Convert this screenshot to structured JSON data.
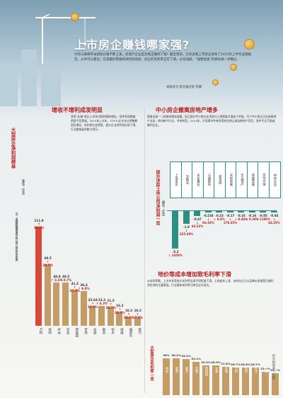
{
  "header": {
    "title": "上市房企赚钱哪家强?",
    "lead": "今年以来每平米新房价格不断上涨，房地产企业是否真正赚到了钱？截至目前，已有多家上市房企发布了2015年上半年业绩报告。从中可以看出，在高额的营收和净利润背后，房企的毛利率正在下滑，分化加剧，“强者恒强”的格局进一步确立。",
    "byline": "本版采写 新京报记者 李娜"
  },
  "left": {
    "title": "增收不增利成发明显",
    "text": "多家“长袖”房企上半年均保持营收增长，但净利润增速明显不及营收。2015年上半年，TOP10企业合计销售额同比增长，但利润分化明显，部分企业净利润出现下滑，行业整体盈利能力承压。",
    "chart_vtitle": "大型房企净利润榜单",
    "chart_unit": "（单位：亿元）",
    "chart_note": "注：本榜数据来源为各公司公布的半年报"
  },
  "right_top": {
    "title": "中小房企撤离房地产增多",
    "text": "营收全面一二线城市增长放缓，加之部分中小房企在资金与土地获取方面处于劣势，不少中小房企正在剥离地产业务，转向新兴行业，寻求转型。2014年，沪深两市共有多家房企转让或出售地产项目，其中不乏亏损或微利企业。",
    "chart_vtitle": "部分涉房上市公司净利润一览",
    "chart_unit": "（单位：亿元）"
  },
  "right_bottom": {
    "title": "地价等成本增加致毛利率下滑",
    "text": "从毛利率看，上半年多家房企毛利率出现不同程度下滑。土地成本上涨、去库存压力以及降价促销是压缩利润空间的主要原因，行业整体毛利率已降至近年低位。",
    "chart_vtitle": "大型房企毛利率一览",
    "credit": "新京报制图 / 左颖"
  },
  "chart_data": [
    {
      "type": "bar",
      "title": "大型房企净利润榜单",
      "unit": "亿元",
      "categories": [
        "万科",
        "保利",
        "中海",
        "华润",
        "碧桂园",
        "世茂",
        "龙湖",
        "融创",
        "恒大",
        "绿城",
        "雅居乐",
        "富力"
      ],
      "values": [
        111.8,
        69.5,
        48.8,
        48.5,
        41.2,
        39.4,
        22.64,
        22.3,
        21.5,
        16.3,
        10.3,
        10.2
      ],
      "labels": [
        "111.8",
        "69.5",
        "48.8",
        "48.5",
        "41.2",
        "39.4",
        "22.64",
        "22.3",
        "21.5",
        "16.3",
        "10.3",
        "10.2"
      ],
      "growth": [
        "↑ 20.3%",
        "↑ 29.5%",
        "↑ 3.6%",
        "↑ 0.7%",
        "↑ 31.8%",
        "↑ 9.0%",
        "↑ 15.0%",
        "↑ 4.3%",
        "↑ 20.1%",
        "↑ 24.0%",
        "↑ 20.1%",
        "↑ 17.2%"
      ],
      "highlight": [
        true,
        false,
        false,
        false,
        false,
        false,
        false,
        false,
        false,
        false,
        false,
        false
      ],
      "ylim": [
        0,
        120
      ]
    },
    {
      "type": "bar",
      "title": "部分涉房上市公司净利润一览",
      "unit": "亿元",
      "categories": [
        "上海宝龙",
        "深物业",
        "天伦置业",
        "三湘股份",
        "新华联",
        "天房发展",
        "华远地产",
        "荣盛发展",
        "苏宁环球",
        "中华企业"
      ],
      "values": [
        -5.3,
        -1.8,
        -0.67,
        -0.234,
        -0.23,
        -0.17,
        -0.16,
        -0.16,
        -0.05,
        -0.04
      ],
      "labels": [
        "-5.3",
        "-1.8",
        "-0.67",
        "-0.234",
        "-0.23",
        "-0.17",
        "-0.16",
        "-0.16",
        "-0.05",
        "-0.04"
      ],
      "growth": [
        "↓ 2358%",
        "↓ 325.29%",
        "↓ 43.52%",
        "↓ 66.18%",
        "↓ 8.8%",
        "↓ 178.35%",
        "↓ 0.44%",
        "↓ 9.39%",
        "↓ 1186%",
        "↓ 44.55%"
      ],
      "ylim": [
        -6,
        0
      ]
    },
    {
      "type": "bar",
      "title": "大型房企毛利率一览",
      "unit": "%",
      "categories": [
        "中海",
        "保利",
        "富力",
        "华润",
        "碧桂园",
        "龙湖",
        "金地",
        "万科",
        "世茂",
        "恒大",
        "绿城",
        "融创"
      ],
      "values": [
        36.0,
        36.2,
        35.2,
        32.1,
        29.3,
        28.9,
        27.8,
        26.7,
        26.6,
        26.7,
        23.0,
        21.1
      ],
      "labels": [
        "36%",
        "36.2%",
        "35.2%",
        "32.1%",
        "29.3%",
        "28.9%",
        "27.8%",
        "26.7%",
        "26.6%",
        "26.7%",
        "23.0%",
        "21.1%"
      ],
      "ylim": [
        0,
        40
      ]
    }
  ]
}
